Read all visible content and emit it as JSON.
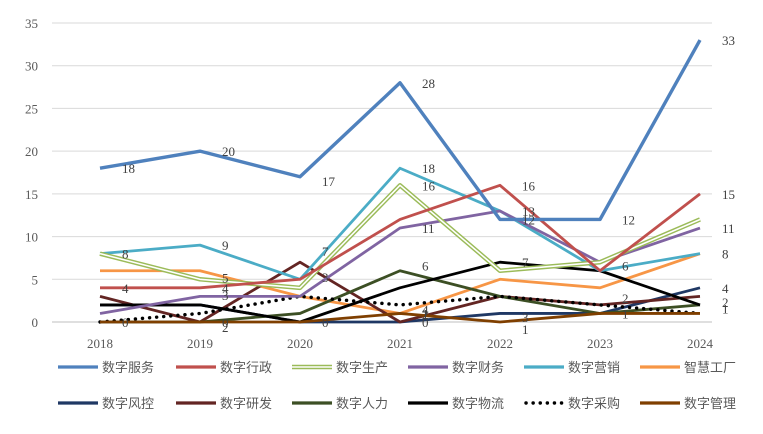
{
  "chart_data": {
    "type": "line",
    "title": "",
    "xlabel": "",
    "ylabel": "",
    "x": [
      "2018",
      "2019",
      "2020",
      "2021",
      "2022",
      "2023",
      "2024"
    ],
    "ylim": [
      0,
      35
    ],
    "yticks": [
      0,
      5,
      10,
      15,
      20,
      25,
      30,
      35
    ],
    "grid": "horizontal",
    "legend": "bottom",
    "series": [
      {
        "name": "数字服务",
        "values": [
          18,
          20,
          17,
          28,
          12,
          12,
          33
        ],
        "color": "#4F81BD",
        "style": "solid",
        "labels": true
      },
      {
        "name": "数字行政",
        "values": [
          4,
          4,
          5,
          12,
          16,
          6,
          15
        ],
        "color": "#C0504D",
        "style": "solid",
        "labels": true
      },
      {
        "name": "数字生产",
        "values": [
          8,
          5,
          4,
          16,
          6,
          7,
          12
        ],
        "color": "#9BBB59",
        "style": "double",
        "labels": true
      },
      {
        "name": "数字财务",
        "values": [
          1,
          3,
          3,
          11,
          13,
          7,
          11
        ],
        "color": "#8064A2",
        "style": "solid",
        "labels": true
      },
      {
        "name": "数字营销",
        "values": [
          8,
          9,
          5,
          18,
          13,
          6,
          8
        ],
        "color": "#4BACC6",
        "style": "solid",
        "labels": true
      },
      {
        "name": "智慧工厂",
        "values": [
          6,
          6,
          3,
          1,
          5,
          4,
          8
        ],
        "color": "#F79646",
        "style": "solid",
        "labels": false
      },
      {
        "name": "数字风控",
        "values": [
          2,
          2,
          0,
          0,
          1,
          1,
          4
        ],
        "color": "#1F3864",
        "style": "solid",
        "labels": false
      },
      {
        "name": "数字研发",
        "values": [
          3,
          0,
          7,
          0,
          3,
          2,
          3
        ],
        "color": "#632523",
        "style": "solid",
        "labels": false
      },
      {
        "name": "数字人力",
        "values": [
          0,
          0,
          1,
          6,
          3,
          1,
          2
        ],
        "color": "#3C4F24",
        "style": "solid",
        "labels": false
      },
      {
        "name": "数字物流",
        "values": [
          2,
          2,
          0,
          4,
          7,
          6,
          2
        ],
        "color": "#000000",
        "style": "solid",
        "labels": false
      },
      {
        "name": "数字采购",
        "values": [
          0,
          1,
          3,
          2,
          3,
          2,
          1
        ],
        "color": "#000000",
        "style": "dotted",
        "labels": false
      },
      {
        "name": "数字管理",
        "values": [
          0,
          0,
          0,
          1,
          0,
          1,
          1
        ],
        "color": "#7F3F00",
        "style": "solid",
        "labels": false
      }
    ],
    "data_labels": [
      {
        "text": "18"
      },
      {
        "text": "20"
      },
      {
        "text": "17"
      },
      {
        "text": "28"
      },
      {
        "text": "33"
      },
      {
        "text": "16"
      },
      {
        "text": "15"
      },
      {
        "text": "18"
      },
      {
        "text": "16"
      },
      {
        "text": "13"
      },
      {
        "text": "12"
      },
      {
        "text": "12"
      },
      {
        "text": "11"
      },
      {
        "text": "11"
      },
      {
        "text": "8"
      },
      {
        "text": "9"
      },
      {
        "text": "8"
      },
      {
        "text": "4"
      },
      {
        "text": "4"
      },
      {
        "text": "5"
      },
      {
        "text": "4"
      },
      {
        "text": "4"
      },
      {
        "text": "7"
      },
      {
        "text": "7"
      },
      {
        "text": "6"
      },
      {
        "text": "6"
      },
      {
        "text": "3"
      },
      {
        "text": "3"
      },
      {
        "text": "3"
      },
      {
        "text": "2"
      },
      {
        "text": "2"
      },
      {
        "text": "2"
      },
      {
        "text": "2"
      },
      {
        "text": "1"
      },
      {
        "text": "1"
      },
      {
        "text": "1"
      },
      {
        "text": "1"
      },
      {
        "text": "0"
      },
      {
        "text": "0"
      },
      {
        "text": "0"
      },
      {
        "text": "0"
      }
    ]
  }
}
